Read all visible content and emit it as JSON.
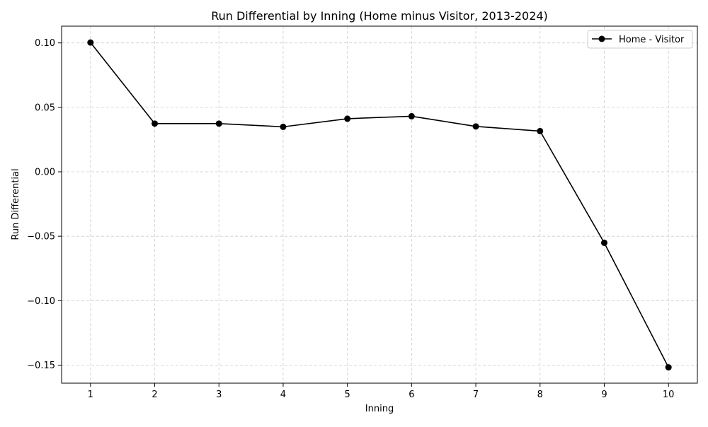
{
  "chart_data": {
    "type": "line",
    "title": "Run Differential by Inning (Home minus Visitor, 2013-2024)",
    "xlabel": "Inning",
    "ylabel": "Run Differential",
    "x": [
      1,
      2,
      3,
      4,
      5,
      6,
      7,
      8,
      9,
      10
    ],
    "x_tick_labels": [
      "1",
      "2",
      "3",
      "4",
      "5",
      "6",
      "7",
      "8",
      "9",
      "10"
    ],
    "xlim": [
      0.55,
      10.45
    ],
    "ylim": [
      -0.164,
      0.113
    ],
    "y_ticks": [
      0.1,
      0.05,
      0.0,
      -0.05,
      -0.1,
      -0.15
    ],
    "y_tick_labels": [
      "0.10",
      "0.05",
      "0.00",
      "−0.05",
      "−0.10",
      "−0.15"
    ],
    "grid": true,
    "legend_position": "top-right",
    "series": [
      {
        "name": "Home - Visitor",
        "color": "#000000",
        "marker": "circle",
        "values": [
          0.1003,
          0.0374,
          0.0374,
          0.0349,
          0.0412,
          0.0431,
          0.0352,
          0.0316,
          -0.0551,
          -0.1517
        ]
      }
    ]
  }
}
